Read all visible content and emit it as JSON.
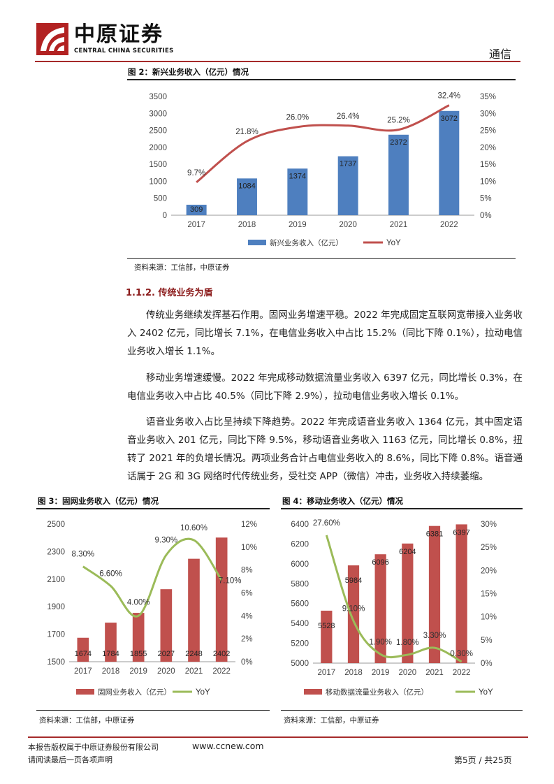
{
  "header": {
    "company_cn": "中原证券",
    "company_en": "CENTRAL CHINA SECURITIES",
    "section": "通信"
  },
  "fig2": {
    "title": "图 2：新兴业务收入（亿元）情况",
    "source": "资料来源：工信部，中原证券",
    "chart_data": {
      "type": "bar",
      "categories": [
        "2017",
        "2018",
        "2019",
        "2020",
        "2021",
        "2022"
      ],
      "series": [
        {
          "name": "新兴业务收入（亿元）",
          "type": "bar",
          "axis": "left",
          "values": [
            309,
            1084,
            1374,
            1737,
            2372,
            3072
          ],
          "labels": [
            "309",
            "1084",
            "1374",
            "1737",
            "2372",
            "3072"
          ]
        },
        {
          "name": "YoY",
          "type": "line",
          "axis": "right",
          "values": [
            9.7,
            21.8,
            26.0,
            26.4,
            25.2,
            32.4
          ],
          "labels": [
            "9.7%",
            "21.8%",
            "26.0%",
            "26.4%",
            "25.2%",
            "32.4%"
          ]
        }
      ],
      "left_axis": {
        "min": 0,
        "max": 3500,
        "ticks": [
          "0",
          "500",
          "1000",
          "1500",
          "2000",
          "2500",
          "3000",
          "3500"
        ]
      },
      "right_axis": {
        "min": 0,
        "max": 35,
        "ticks": [
          "0%",
          "5%",
          "10%",
          "15%",
          "20%",
          "25%",
          "30%",
          "35%"
        ]
      },
      "legend": "bottom",
      "bar_color": "#4e7fbf",
      "line_color": "#c0504d"
    }
  },
  "section_title": "1.1.2. 传统业务为盾",
  "paragraphs": [
    "传统业务继续发挥基石作用。固网业务增速平稳。2022 年完成固定互联网宽带接入业务收入 2402 亿元，同比增长 7.1%，在电信业务收入中占比 15.2%（同比下降 0.1%），拉动电信业务收入增长 1.1%。",
    "移动业务增速缓慢。2022 年完成移动数据流量业务收入 6397 亿元，同比增长 0.3%，在电信业务收入中占比 40.5%（同比下降 2.9%），拉动电信业务收入增长 0.1%。",
    "语音业务收入占比呈持续下降趋势。2022 年完成语音业务收入 1364 亿元，其中固定语音业务收入 201 亿元，同比下降 9.5%，移动语音业务收入 1163 亿元，同比增长 0.8%，扭转了 2021 年的负增长情况。两项业务合计占电信业务收入的 8.6%，同比下降 0.8%。语音通话属于 2G 和 3G 网络时代传统业务，受社交 APP（微信）冲击，业务收入持续萎缩。"
  ],
  "fig3": {
    "title": "图 3：固网业务收入（亿元）情况",
    "source": "资料来源：工信部，中原证券",
    "chart_data": {
      "type": "bar",
      "categories": [
        "2017",
        "2018",
        "2019",
        "2020",
        "2021",
        "2022"
      ],
      "series": [
        {
          "name": "固网业务收入（亿元）",
          "type": "bar",
          "axis": "left",
          "values": [
            1674,
            1784,
            1855,
            2027,
            2248,
            2402
          ],
          "labels": [
            "1674",
            "1784",
            "1855",
            "2027",
            "2248",
            "2402"
          ]
        },
        {
          "name": "YoY",
          "type": "line",
          "axis": "right",
          "values": [
            8.3,
            6.6,
            4.0,
            9.3,
            10.6,
            7.1
          ],
          "labels": [
            "8.30%",
            "6.60%",
            "4.00%",
            "9.30%",
            "10.60%",
            "7.10%"
          ]
        }
      ],
      "left_axis": {
        "min": 1500,
        "max": 2500,
        "ticks": [
          "1500",
          "1700",
          "1900",
          "2100",
          "2300",
          "2500"
        ]
      },
      "right_axis": {
        "min": 0,
        "max": 12,
        "ticks": [
          "0%",
          "2%",
          "4%",
          "6%",
          "8%",
          "10%",
          "12%"
        ]
      },
      "legend": "bottom",
      "bar_color": "#c0504d",
      "line_color": "#9bbb59"
    }
  },
  "fig4": {
    "title": "图 4：移动业务收入（亿元）情况",
    "source": "资料来源：工信部，中原证券",
    "chart_data": {
      "type": "bar",
      "categories": [
        "2017",
        "2018",
        "2019",
        "2020",
        "2021",
        "2022"
      ],
      "series": [
        {
          "name": "移动数据流量业务收入（亿元）",
          "type": "bar",
          "axis": "left",
          "values": [
            5528,
            5984,
            6096,
            6204,
            6381,
            6397
          ],
          "labels": [
            "5528",
            "5984",
            "6096",
            "6204",
            "6381",
            "6397"
          ]
        },
        {
          "name": "YoY",
          "type": "line",
          "axis": "right",
          "values": [
            27.6,
            9.1,
            1.9,
            1.8,
            3.3,
            0.3
          ],
          "labels": [
            "27.60%",
            "9.10%",
            "1.90%",
            "1.80%",
            "3.30%",
            "0.30%"
          ]
        }
      ],
      "left_axis": {
        "min": 5000,
        "max": 6400,
        "ticks": [
          "5000",
          "5200",
          "5400",
          "5600",
          "5800",
          "6000",
          "6200",
          "6400"
        ]
      },
      "right_axis": {
        "min": 0,
        "max": 30,
        "ticks": [
          "0%",
          "5%",
          "10%",
          "15%",
          "20%",
          "25%",
          "30%"
        ]
      },
      "legend": "bottom",
      "bar_color": "#c0504d",
      "line_color": "#9bbb59"
    }
  },
  "footer": {
    "copyright": "本报告版权属于中原证券股份有限公司",
    "website": "www.ccnew.com",
    "disclaimer": "请阅读最后一页各项声明",
    "page": "第5页 / 共25页"
  }
}
